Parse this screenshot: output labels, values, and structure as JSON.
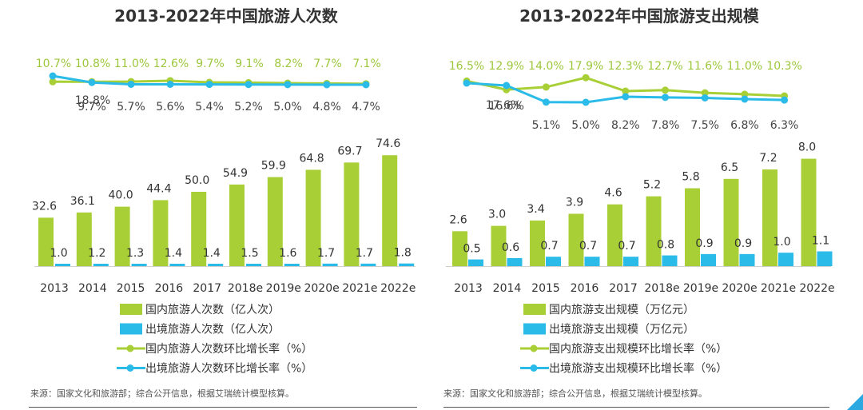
{
  "colors": {
    "green": "#A8CF35",
    "blue": "#2BBBE8",
    "green_text": "#9DC73B",
    "dark_text": "#333333",
    "corner": "#2BA8E0"
  },
  "chart_data": [
    {
      "type": "bar",
      "title": "2013-2022年中国旅游人次数",
      "categories": [
        "2013",
        "2014",
        "2015",
        "2016",
        "2017",
        "2018e",
        "2019e",
        "2020e",
        "2021e",
        "2022e"
      ],
      "series": [
        {
          "name": "国内旅游人次数（亿人次）",
          "values": [
            32.6,
            36.1,
            40.0,
            44.4,
            50.0,
            54.9,
            59.9,
            64.8,
            69.7,
            74.6
          ],
          "labels": [
            "32.6",
            "36.1",
            "40.0",
            "44.4",
            "50.0",
            "54.9",
            "59.9",
            "64.8",
            "69.7",
            "74.6"
          ]
        },
        {
          "name": "出境旅游人次数（亿人次）",
          "values": [
            1.0,
            1.2,
            1.3,
            1.4,
            1.4,
            1.5,
            1.6,
            1.7,
            1.7,
            1.8
          ],
          "labels": [
            "1.0",
            "1.2",
            "1.3",
            "1.4",
            "1.4",
            "1.5",
            "1.6",
            "1.7",
            "1.7",
            "1.8"
          ]
        }
      ],
      "growth_series": [
        {
          "name": "国内旅游人次数环比增长率（%）",
          "values": [
            10.7,
            10.8,
            11.0,
            12.6,
            9.7,
            9.1,
            8.2,
            7.7,
            7.1
          ],
          "labels": [
            "10.7%",
            "10.8%",
            "11.0%",
            "12.6%",
            "9.7%",
            "9.1%",
            "8.2%",
            "7.7%",
            "7.1%"
          ]
        },
        {
          "name": "出境旅游人次数环比增长率（%）",
          "values": [
            18.8,
            9.7,
            5.7,
            5.6,
            5.4,
            5.2,
            5.0,
            4.8,
            4.7
          ],
          "labels": [
            "18.8%",
            "9.7%",
            "5.7%",
            "5.6%",
            "5.4%",
            "5.2%",
            "5.0%",
            "4.8%",
            "4.7%"
          ]
        }
      ],
      "legend": [
        "国内旅游人次数（亿人次）",
        "出境旅游人次数（亿人次）",
        "国内旅游人次数环比增长率（%）",
        "出境旅游人次数环比增长率（%）"
      ],
      "ylim": [
        0,
        80
      ]
    },
    {
      "type": "bar",
      "title": "2013-2022年中国旅游支出规模",
      "categories": [
        "2013",
        "2014",
        "2015",
        "2016",
        "2017",
        "2018e",
        "2019e",
        "2020e",
        "2021e",
        "2022e"
      ],
      "series": [
        {
          "name": "国内旅游支出规模（万亿元）",
          "values": [
            2.6,
            3.0,
            3.4,
            3.9,
            4.6,
            5.2,
            5.8,
            6.5,
            7.2,
            8.0
          ],
          "labels": [
            "2.6",
            "3.0",
            "3.4",
            "3.9",
            "4.6",
            "5.2",
            "5.8",
            "6.5",
            "7.2",
            "8.0"
          ]
        },
        {
          "name": "出境旅游支出规模（万亿元）",
          "values": [
            0.5,
            0.6,
            0.7,
            0.7,
            0.7,
            0.8,
            0.9,
            0.9,
            1.0,
            1.1
          ],
          "labels": [
            "0.5",
            "0.6",
            "0.7",
            "0.7",
            "0.7",
            "0.8",
            "0.9",
            "0.9",
            "1.0",
            "1.1"
          ]
        }
      ],
      "growth_series": [
        {
          "name": "国内旅游支出规模环比增长率（%）",
          "values": [
            16.5,
            12.9,
            14.0,
            17.9,
            12.3,
            12.7,
            11.6,
            11.0,
            10.3
          ],
          "labels": [
            "16.5%",
            "12.9%",
            "14.0%",
            "17.9%",
            "12.3%",
            "12.7%",
            "11.6%",
            "11.0%",
            "10.3%"
          ]
        },
        {
          "name": "出境旅游支出规模环比增长率（%）",
          "values": [
            17.6,
            16.6,
            5.1,
            5.0,
            8.2,
            7.8,
            7.5,
            6.8,
            6.3
          ],
          "labels": [
            "17.6%",
            "16.6%",
            "5.1%",
            "5.0%",
            "8.2%",
            "7.8%",
            "7.5%",
            "6.8%",
            "6.3%"
          ]
        }
      ],
      "legend": [
        "国内旅游支出规模（万亿元）",
        "出境旅游支出规模（万亿元）",
        "国内旅游支出规模环比增长率（%）",
        "出境旅游支出规模环比增长率（%）"
      ],
      "ylim": [
        0,
        8.6
      ]
    }
  ],
  "sources": [
    "来源：国家文化和旅游部；综合公开信息，根据艾瑞统计模型核算。",
    "来源：国家文化和旅游部；综合公开信息，根据艾瑞统计模型核算。"
  ]
}
